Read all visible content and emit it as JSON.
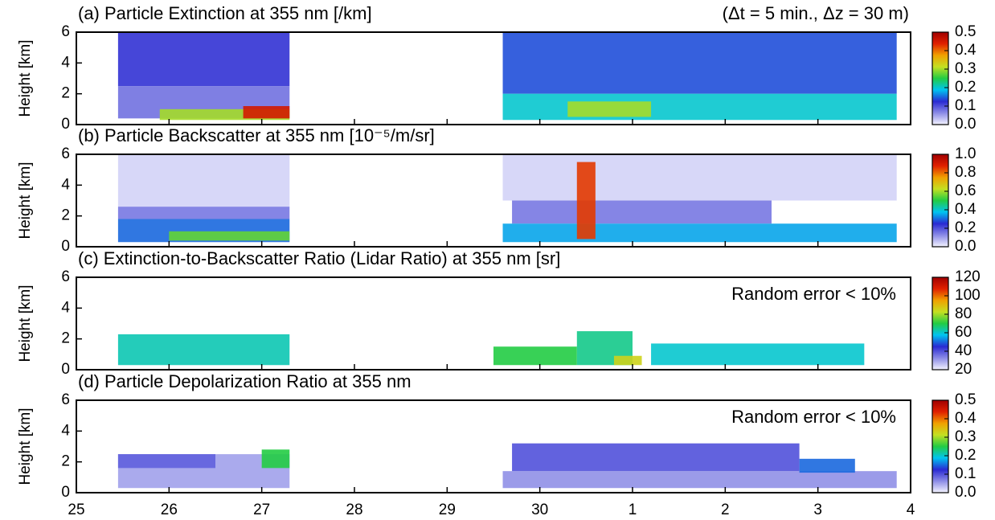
{
  "chart_data": [
    {
      "type": "heatmap",
      "title": "(a) Particle Extinction at 355 nm [/km]",
      "subtitle": "(Δt = 5 min., Δz = 30 m)",
      "ylabel": "Height [km]",
      "xlim": [
        25,
        34
      ],
      "ylim": [
        0,
        6
      ],
      "yticks": [
        0,
        2,
        4,
        6
      ],
      "clim": [
        0,
        0.5
      ],
      "cticks": [
        {
          "value": 0,
          "label": "0.0"
        },
        0.1,
        0.2,
        0.3,
        0.4,
        0.5
      ],
      "colors": [
        "#f4f4ff",
        "#8c8ce6",
        "#2a2ad2",
        "#00c4f0",
        "#22cc44",
        "#c4e022",
        "#f0a000",
        "#e02000",
        "#a00000"
      ],
      "blocks": [
        {
          "x": [
            25.45,
            27.3
          ],
          "z": [
            2.5,
            6
          ],
          "value": 0.12
        },
        {
          "x": [
            25.45,
            27.3
          ],
          "z": [
            0.4,
            2.5
          ],
          "value": 0.08
        },
        {
          "x": [
            25.9,
            27.3
          ],
          "z": [
            0.3,
            1.0
          ],
          "value": 0.3
        },
        {
          "x": [
            26.8,
            27.3
          ],
          "z": [
            0.4,
            1.2
          ],
          "value": 0.45
        },
        {
          "x": [
            29.6,
            33.85
          ],
          "z": [
            2,
            6
          ],
          "value": 0.14
        },
        {
          "x": [
            29.6,
            33.85
          ],
          "z": [
            0.3,
            2
          ],
          "value": 0.2
        },
        {
          "x": [
            30.3,
            31.2
          ],
          "z": [
            0.5,
            1.5
          ],
          "value": 0.3
        }
      ]
    },
    {
      "type": "heatmap",
      "title": "(b) Particle Backscatter at 355 nm [10⁻⁵/m/sr]",
      "ylabel": "Height [km]",
      "xlim": [
        25,
        34
      ],
      "ylim": [
        0,
        6
      ],
      "yticks": [
        0,
        2,
        4,
        6
      ],
      "clim": [
        0,
        1
      ],
      "cticks": [
        {
          "value": 0,
          "label": "0.0"
        },
        0.2,
        0.4,
        0.6,
        0.8,
        {
          "value": 1,
          "label": "1.0"
        }
      ],
      "colors": [
        "#f4f4ff",
        "#8c8ce6",
        "#2a2ad2",
        "#00c4f0",
        "#22cc44",
        "#c4e022",
        "#f0a000",
        "#e02000",
        "#a00000"
      ],
      "blocks": [
        {
          "x": [
            25.45,
            27.3
          ],
          "z": [
            2.6,
            6
          ],
          "value": 0.04
        },
        {
          "x": [
            25.45,
            27.3
          ],
          "z": [
            1.8,
            2.6
          ],
          "value": 0.15
        },
        {
          "x": [
            25.45,
            27.3
          ],
          "z": [
            0.3,
            1.8
          ],
          "value": 0.3
        },
        {
          "x": [
            26.0,
            27.3
          ],
          "z": [
            0.4,
            1.0
          ],
          "value": 0.55
        },
        {
          "x": [
            29.6,
            33.85
          ],
          "z": [
            3,
            6
          ],
          "value": 0.04
        },
        {
          "x": [
            29.7,
            32.5
          ],
          "z": [
            1.5,
            3
          ],
          "value": 0.15
        },
        {
          "x": [
            29.6,
            33.85
          ],
          "z": [
            0.3,
            1.5
          ],
          "value": 0.35
        },
        {
          "x": [
            30.4,
            30.6
          ],
          "z": [
            0.5,
            5.5
          ],
          "value": 0.85
        }
      ]
    },
    {
      "type": "heatmap",
      "title": "(c) Extinction-to-Backscatter Ratio (Lidar Ratio) at 355 nm [sr]",
      "annotation": "Random error < 10%",
      "ylabel": "Height [km]",
      "xlim": [
        25,
        34
      ],
      "ylim": [
        0,
        6
      ],
      "yticks": [
        0,
        2,
        4,
        6
      ],
      "clim": [
        20,
        120
      ],
      "cticks": [
        20,
        40,
        60,
        80,
        100,
        120
      ],
      "colors": [
        "#f4f4ff",
        "#8c8ce6",
        "#2a2ad2",
        "#00c4f0",
        "#22cc44",
        "#c4e022",
        "#f0a000",
        "#e02000",
        "#a00000"
      ],
      "blocks": [
        {
          "x": [
            25.45,
            27.3
          ],
          "z": [
            0.3,
            2.3
          ],
          "value": 62
        },
        {
          "x": [
            29.5,
            30.4
          ],
          "z": [
            0.3,
            1.5
          ],
          "value": 70
        },
        {
          "x": [
            30.4,
            31.0
          ],
          "z": [
            0.3,
            2.5
          ],
          "value": 65
        },
        {
          "x": [
            31.2,
            33.5
          ],
          "z": [
            0.3,
            1.7
          ],
          "value": 60
        },
        {
          "x": [
            30.8,
            31.1
          ],
          "z": [
            0.3,
            0.9
          ],
          "value": 85
        }
      ]
    },
    {
      "type": "heatmap",
      "title": "(d) Particle Depolarization Ratio at 355 nm",
      "annotation": "Random error < 10%",
      "ylabel": "Height [km]",
      "xlim": [
        25,
        34
      ],
      "ylim": [
        0,
        6
      ],
      "yticks": [
        0,
        2,
        4,
        6
      ],
      "xticks": [
        25,
        26,
        27,
        28,
        29,
        30,
        {
          "value": 31,
          "label": "1"
        },
        {
          "value": 32,
          "label": "2"
        },
        {
          "value": 33,
          "label": "3"
        },
        {
          "value": 34,
          "label": "4"
        }
      ],
      "clim": [
        0,
        0.5
      ],
      "cticks": [
        {
          "value": 0,
          "label": "0.0"
        },
        0.1,
        0.2,
        0.3,
        0.4,
        0.5
      ],
      "colors": [
        "#f4f4ff",
        "#8c8ce6",
        "#2a2ad2",
        "#00c4f0",
        "#22cc44",
        "#c4e022",
        "#f0a000",
        "#e02000",
        "#a00000"
      ],
      "blocks": [
        {
          "x": [
            25.45,
            27.3
          ],
          "z": [
            0.3,
            2.5
          ],
          "value": 0.05
        },
        {
          "x": [
            25.45,
            26.5
          ],
          "z": [
            1.6,
            2.5
          ],
          "value": 0.09
        },
        {
          "x": [
            27.0,
            27.3
          ],
          "z": [
            1.6,
            2.8
          ],
          "value": 0.25
        },
        {
          "x": [
            29.6,
            33.85
          ],
          "z": [
            0.3,
            1.4
          ],
          "value": 0.06
        },
        {
          "x": [
            29.7,
            32.8
          ],
          "z": [
            1.4,
            3.2
          ],
          "value": 0.1
        },
        {
          "x": [
            32.8,
            33.4
          ],
          "z": [
            1.3,
            2.2
          ],
          "value": 0.15
        }
      ]
    }
  ]
}
